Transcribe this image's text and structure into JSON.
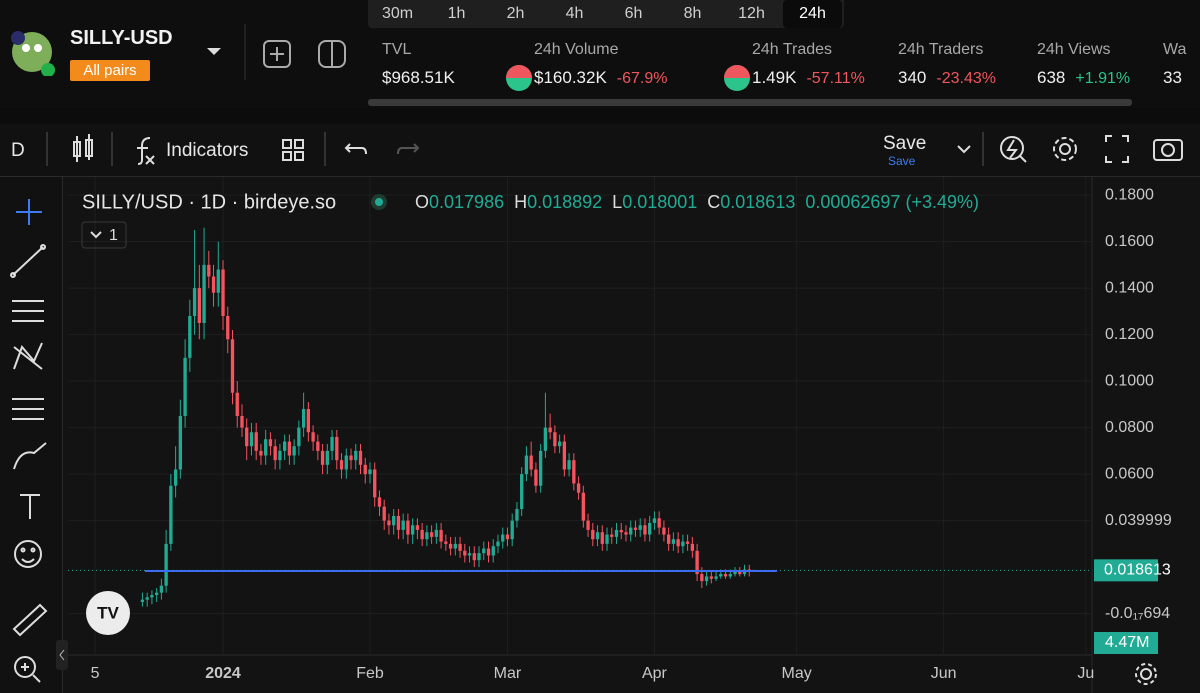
{
  "header": {
    "pair": "SILLY-USD",
    "badge": "All pairs",
    "timeframes": [
      "30m",
      "1h",
      "2h",
      "4h",
      "6h",
      "8h",
      "12h",
      "24h"
    ],
    "active_timeframe": 7,
    "stats": [
      {
        "label": "TVL",
        "value": "$968.51K"
      },
      {
        "label": "24h Volume",
        "value": "$160.32K",
        "change": "-67.9%"
      },
      {
        "label": "24h Trades",
        "value": "1.49K",
        "change": "-57.11%"
      },
      {
        "label": "24h Traders",
        "value": "340",
        "change": "-23.43%"
      },
      {
        "label": "24h Views",
        "value": "638",
        "change": "+1.91%"
      },
      {
        "label": "Wa",
        "value": "33"
      }
    ]
  },
  "toolbar": {
    "interval": "D",
    "indicators": "Indicators",
    "save": "Save",
    "save_sub": "Save"
  },
  "chart_data": {
    "type": "candlestick",
    "title": "SILLY/USD · 1D · birdeye.so",
    "ohlc_labels": [
      "O",
      "H",
      "L",
      "C"
    ],
    "change": "0.00062697 (+3.49%)",
    "collapse": "1",
    "volume_label": "4.47M",
    "up_color": "#22ab94",
    "down_color": "#f7525f",
    "grid": true,
    "xlim": [
      -5.7,
      210.3
    ],
    "xticks": [
      {
        "value": 0,
        "label": "5"
      },
      {
        "value": 27,
        "label": "2024"
      },
      {
        "value": 58,
        "label": "Feb"
      },
      {
        "value": 87,
        "label": "Mar"
      },
      {
        "value": 118,
        "label": "Apr"
      },
      {
        "value": 148,
        "label": "May"
      },
      {
        "value": 179,
        "label": "Jun"
      },
      {
        "value": 209,
        "label": "Ju"
      }
    ],
    "ylim": [
      -0.0178,
      0.1865
    ],
    "yticks": [
      {
        "value": 0.18,
        "label": "0.1800"
      },
      {
        "value": 0.16,
        "label": "0.1600"
      },
      {
        "value": 0.14,
        "label": "0.1400"
      },
      {
        "value": 0.12,
        "label": "0.1200"
      },
      {
        "value": 0.1,
        "label": "0.1000"
      },
      {
        "value": 0.08,
        "label": "0.0800"
      },
      {
        "value": 0.06,
        "label": "0.0600"
      },
      0.039999,
      {
        "value": -6.94e-18,
        "label": "-0.0₁₇694"
      }
    ],
    "x": [
      10,
      11,
      12,
      13,
      14,
      15,
      16,
      17,
      18,
      19,
      20,
      21,
      22,
      23,
      24,
      25,
      26,
      27,
      28,
      29,
      30,
      31,
      32,
      33,
      34,
      35,
      36,
      37,
      38,
      39,
      40,
      41,
      42,
      43,
      44,
      45,
      46,
      47,
      48,
      49,
      50,
      51,
      52,
      53,
      54,
      55,
      56,
      57,
      58,
      59,
      60,
      61,
      62,
      63,
      64,
      65,
      66,
      67,
      68,
      69,
      70,
      71,
      72,
      73,
      74,
      75,
      76,
      77,
      78,
      79,
      80,
      81,
      82,
      83,
      84,
      85,
      86,
      87,
      88,
      89,
      90,
      91,
      92,
      93,
      94,
      95,
      96,
      97,
      98,
      99,
      100,
      101,
      102,
      103,
      104,
      105,
      106,
      107,
      108,
      109,
      110,
      111,
      112,
      113,
      114,
      115,
      116,
      117,
      118,
      119,
      120,
      121,
      122,
      123,
      124,
      125,
      126,
      127,
      128,
      129,
      130,
      131,
      132,
      133,
      134,
      135,
      136,
      137,
      138,
      139
    ],
    "open": [
      0.005,
      0.006,
      0.007,
      0.008,
      0.009,
      0.012,
      0.03,
      0.055,
      0.062,
      0.085,
      0.11,
      0.128,
      0.14,
      0.125,
      0.15,
      0.145,
      0.138,
      0.148,
      0.128,
      0.118,
      0.095,
      0.085,
      0.08,
      0.072,
      0.078,
      0.07,
      0.068,
      0.075,
      0.072,
      0.066,
      0.07,
      0.074,
      0.068,
      0.072,
      0.08,
      0.088,
      0.078,
      0.074,
      0.07,
      0.064,
      0.07,
      0.076,
      0.066,
      0.062,
      0.068,
      0.066,
      0.07,
      0.064,
      0.06,
      0.062,
      0.05,
      0.046,
      0.04,
      0.038,
      0.042,
      0.036,
      0.04,
      0.034,
      0.038,
      0.036,
      0.032,
      0.035,
      0.033,
      0.036,
      0.031,
      0.03,
      0.028,
      0.03,
      0.027,
      0.025,
      0.026,
      0.023,
      0.026,
      0.028,
      0.025,
      0.029,
      0.031,
      0.034,
      0.032,
      0.04,
      0.045,
      0.06,
      0.068,
      0.062,
      0.055,
      0.07,
      0.08,
      0.078,
      0.072,
      0.074,
      0.062,
      0.066,
      0.056,
      0.052,
      0.04,
      0.036,
      0.032,
      0.035,
      0.03,
      0.034,
      0.033,
      0.036,
      0.035,
      0.034,
      0.037,
      0.036,
      0.038,
      0.034,
      0.039,
      0.041,
      0.037,
      0.034,
      0.03,
      0.032,
      0.029,
      0.031,
      0.03,
      0.027,
      0.017,
      0.014,
      0.016,
      0.015,
      0.016,
      0.017,
      0.016,
      0.017,
      0.018,
      0.017,
      0.019,
      0.017986
    ],
    "high": [
      0.009,
      0.009,
      0.01,
      0.011,
      0.015,
      0.036,
      0.06,
      0.072,
      0.092,
      0.118,
      0.135,
      0.165,
      0.15,
      0.166,
      0.156,
      0.15,
      0.16,
      0.152,
      0.132,
      0.122,
      0.1,
      0.09,
      0.084,
      0.082,
      0.082,
      0.073,
      0.079,
      0.078,
      0.075,
      0.073,
      0.077,
      0.077,
      0.075,
      0.083,
      0.095,
      0.091,
      0.081,
      0.077,
      0.073,
      0.073,
      0.079,
      0.079,
      0.069,
      0.071,
      0.071,
      0.073,
      0.073,
      0.067,
      0.065,
      0.065,
      0.053,
      0.049,
      0.043,
      0.045,
      0.045,
      0.043,
      0.043,
      0.041,
      0.041,
      0.039,
      0.038,
      0.038,
      0.039,
      0.039,
      0.034,
      0.033,
      0.033,
      0.033,
      0.03,
      0.029,
      0.029,
      0.029,
      0.031,
      0.031,
      0.032,
      0.034,
      0.037,
      0.037,
      0.043,
      0.048,
      0.063,
      0.072,
      0.074,
      0.065,
      0.073,
      0.095,
      0.086,
      0.081,
      0.077,
      0.077,
      0.069,
      0.069,
      0.059,
      0.055,
      0.043,
      0.039,
      0.038,
      0.038,
      0.037,
      0.037,
      0.039,
      0.039,
      0.038,
      0.04,
      0.04,
      0.041,
      0.041,
      0.042,
      0.044,
      0.044,
      0.04,
      0.037,
      0.035,
      0.035,
      0.034,
      0.034,
      0.033,
      0.03,
      0.02,
      0.018,
      0.018,
      0.018,
      0.019,
      0.019,
      0.019,
      0.02,
      0.02,
      0.021,
      0.021,
      0.018892
    ],
    "low": [
      0.003,
      0.003,
      0.004,
      0.005,
      0.006,
      0.009,
      0.027,
      0.05,
      0.058,
      0.08,
      0.104,
      0.12,
      0.118,
      0.118,
      0.14,
      0.132,
      0.132,
      0.122,
      0.112,
      0.09,
      0.08,
      0.076,
      0.066,
      0.068,
      0.066,
      0.064,
      0.064,
      0.068,
      0.062,
      0.062,
      0.066,
      0.064,
      0.064,
      0.068,
      0.076,
      0.074,
      0.07,
      0.066,
      0.06,
      0.06,
      0.066,
      0.062,
      0.058,
      0.058,
      0.062,
      0.062,
      0.06,
      0.056,
      0.056,
      0.046,
      0.042,
      0.036,
      0.034,
      0.034,
      0.032,
      0.032,
      0.03,
      0.03,
      0.032,
      0.029,
      0.029,
      0.03,
      0.03,
      0.028,
      0.027,
      0.025,
      0.025,
      0.024,
      0.022,
      0.022,
      0.02,
      0.02,
      0.023,
      0.022,
      0.022,
      0.026,
      0.028,
      0.029,
      0.029,
      0.037,
      0.042,
      0.057,
      0.059,
      0.052,
      0.052,
      0.067,
      0.075,
      0.069,
      0.069,
      0.059,
      0.059,
      0.053,
      0.049,
      0.037,
      0.033,
      0.029,
      0.029,
      0.027,
      0.027,
      0.03,
      0.03,
      0.032,
      0.031,
      0.031,
      0.033,
      0.033,
      0.031,
      0.031,
      0.036,
      0.034,
      0.031,
      0.027,
      0.027,
      0.026,
      0.026,
      0.027,
      0.024,
      0.014,
      0.011,
      0.012,
      0.013,
      0.014,
      0.015,
      0.015,
      0.015,
      0.016,
      0.016,
      0.016,
      0.016,
      0.018001
    ],
    "close": [
      0.006,
      0.007,
      0.008,
      0.009,
      0.012,
      0.03,
      0.055,
      0.062,
      0.085,
      0.11,
      0.128,
      0.14,
      0.125,
      0.15,
      0.145,
      0.138,
      0.148,
      0.128,
      0.118,
      0.095,
      0.085,
      0.08,
      0.072,
      0.078,
      0.07,
      0.068,
      0.075,
      0.072,
      0.066,
      0.07,
      0.074,
      0.068,
      0.072,
      0.08,
      0.088,
      0.078,
      0.074,
      0.07,
      0.064,
      0.07,
      0.076,
      0.066,
      0.062,
      0.068,
      0.066,
      0.07,
      0.064,
      0.06,
      0.062,
      0.05,
      0.046,
      0.04,
      0.038,
      0.042,
      0.036,
      0.04,
      0.034,
      0.038,
      0.036,
      0.032,
      0.035,
      0.033,
      0.036,
      0.031,
      0.03,
      0.028,
      0.03,
      0.027,
      0.025,
      0.026,
      0.023,
      0.026,
      0.028,
      0.025,
      0.029,
      0.031,
      0.034,
      0.032,
      0.04,
      0.045,
      0.06,
      0.068,
      0.062,
      0.055,
      0.07,
      0.08,
      0.078,
      0.072,
      0.074,
      0.062,
      0.066,
      0.056,
      0.052,
      0.04,
      0.036,
      0.032,
      0.035,
      0.03,
      0.034,
      0.033,
      0.036,
      0.035,
      0.034,
      0.037,
      0.036,
      0.038,
      0.034,
      0.039,
      0.041,
      0.037,
      0.034,
      0.03,
      0.032,
      0.029,
      0.031,
      0.03,
      0.027,
      0.017,
      0.014,
      0.016,
      0.015,
      0.016,
      0.017,
      0.016,
      0.017,
      0.018,
      0.017,
      0.019,
      0.017986,
      0.018613
    ]
  }
}
